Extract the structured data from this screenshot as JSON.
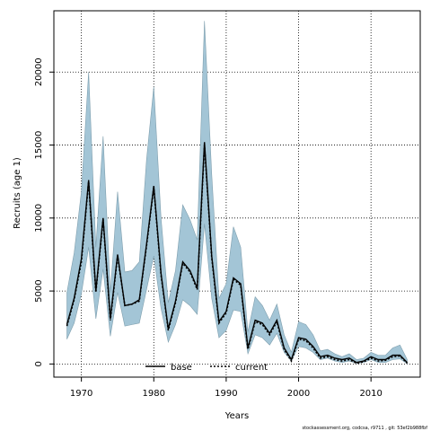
{
  "chart_data": {
    "type": "line",
    "title": "",
    "xlabel": "Years",
    "ylabel": "Recruits (age 1)",
    "xlim": [
      1966.2,
      2016.8
    ],
    "ylim": [
      -900,
      24200
    ],
    "x_ticks": [
      1970,
      1980,
      1990,
      2000,
      2010
    ],
    "y_ticks": [
      0,
      5000,
      10000,
      15000,
      20000
    ],
    "grid": true,
    "legend_placement": "bottom-center",
    "colors": {
      "band": "#a3c5d6",
      "band_edge": "#7f9fae",
      "line": "#000000",
      "grid": "#000000"
    },
    "years": [
      1968,
      1969,
      1970,
      1971,
      1972,
      1973,
      1974,
      1975,
      1976,
      1977,
      1978,
      1979,
      1980,
      1981,
      1982,
      1983,
      1984,
      1985,
      1986,
      1987,
      1988,
      1989,
      1990,
      1991,
      1992,
      1993,
      1994,
      1995,
      1996,
      1997,
      1998,
      1999,
      2000,
      2001,
      2002,
      2003,
      2004,
      2005,
      2006,
      2007,
      2008,
      2009,
      2010,
      2011,
      2012,
      2013,
      2014,
      2015
    ],
    "series": [
      {
        "name": "base",
        "style": "solid",
        "values": [
          2700,
          4500,
          7200,
          12600,
          5000,
          10000,
          3100,
          7500,
          4000,
          4100,
          4400,
          8200,
          12200,
          6200,
          2400,
          4300,
          7000,
          6400,
          5200,
          15200,
          7400,
          2900,
          3600,
          5900,
          5500,
          1100,
          3000,
          2800,
          2100,
          3000,
          1100,
          300,
          1800,
          1700,
          1200,
          500,
          600,
          400,
          300,
          400,
          100,
          200,
          500,
          300,
          300,
          600,
          600,
          100
        ]
      },
      {
        "name": "current",
        "style": "dotted",
        "values": [
          2600,
          4400,
          7000,
          12500,
          4900,
          9900,
          3000,
          7400,
          4000,
          4100,
          4300,
          8100,
          12100,
          6100,
          2300,
          4200,
          6900,
          6300,
          5100,
          15000,
          7300,
          2800,
          3500,
          5800,
          5400,
          1000,
          2900,
          2700,
          2000,
          2900,
          1000,
          200,
          1700,
          1600,
          1100,
          400,
          500,
          300,
          200,
          300,
          50,
          150,
          400,
          200,
          250,
          500,
          550,
          50
        ]
      }
    ],
    "interval_upper": [
      4900,
      7600,
      11800,
      20000,
      8000,
      15600,
      4900,
      11800,
      6300,
      6400,
      7000,
      14000,
      19000,
      10000,
      4200,
      6400,
      10900,
      9900,
      8500,
      23500,
      13000,
      4500,
      5500,
      9400,
      8000,
      2200,
      4600,
      4000,
      3000,
      4100,
      2000,
      800,
      2900,
      2700,
      2000,
      900,
      1000,
      700,
      500,
      700,
      300,
      400,
      800,
      600,
      600,
      1100,
      1300,
      300
    ],
    "interval_lower": [
      1700,
      2800,
      4800,
      8000,
      3100,
      6500,
      1900,
      4900,
      2600,
      2700,
      2800,
      5100,
      7400,
      3800,
      1500,
      2700,
      4400,
      4000,
      3400,
      9600,
      4500,
      1800,
      2300,
      3700,
      3600,
      700,
      2000,
      1800,
      1300,
      2100,
      800,
      200,
      1200,
      1100,
      800,
      300,
      400,
      200,
      100,
      200,
      50,
      100,
      300,
      100,
      100,
      300,
      350,
      20
    ],
    "legend": [
      {
        "label": "base",
        "style": "solid"
      },
      {
        "label": "current",
        "style": "dotted"
      }
    ],
    "footnote": "stockassessment.org, codcsa, r9711 , git: 53ef2b988fbf"
  }
}
